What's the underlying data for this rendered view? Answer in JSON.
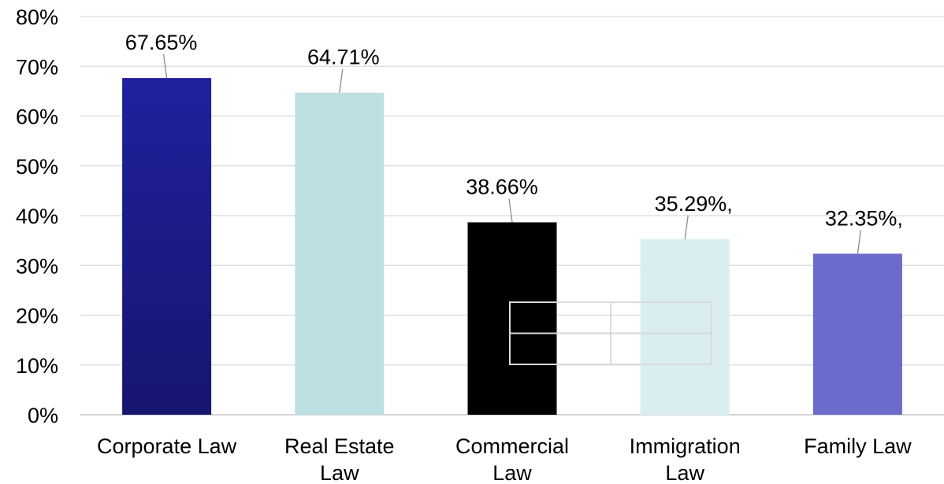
{
  "chart_data": {
    "type": "bar",
    "categories": [
      "Corporate Law",
      "Real Estate Law",
      "Commercial Law",
      "Immigration Law",
      "Family Law"
    ],
    "category_lines": [
      [
        "Corporate Law"
      ],
      [
        "Real Estate",
        "Law"
      ],
      [
        "Commercial",
        "Law"
      ],
      [
        "Immigration",
        "Law"
      ],
      [
        "Family Law"
      ]
    ],
    "values": [
      67.65,
      64.71,
      38.66,
      35.29,
      32.35
    ],
    "data_labels": [
      "67.65%",
      "64.71%",
      "38.66%",
      "35.29%,",
      "32.35%,"
    ],
    "colors": [
      "#1a1a8c",
      "#bde0e3",
      "#000000",
      "#daedef",
      "#6b6bcc"
    ],
    "ylim": [
      0,
      80
    ],
    "yticks": [
      0,
      10,
      20,
      30,
      40,
      50,
      60,
      70,
      80
    ],
    "ytick_labels": [
      "0%",
      "10%",
      "20%",
      "30%",
      "40%",
      "50%",
      "60%",
      "70%",
      "80%"
    ],
    "grid": true,
    "legend": "none",
    "title": "",
    "xlabel": "",
    "ylabel": ""
  }
}
